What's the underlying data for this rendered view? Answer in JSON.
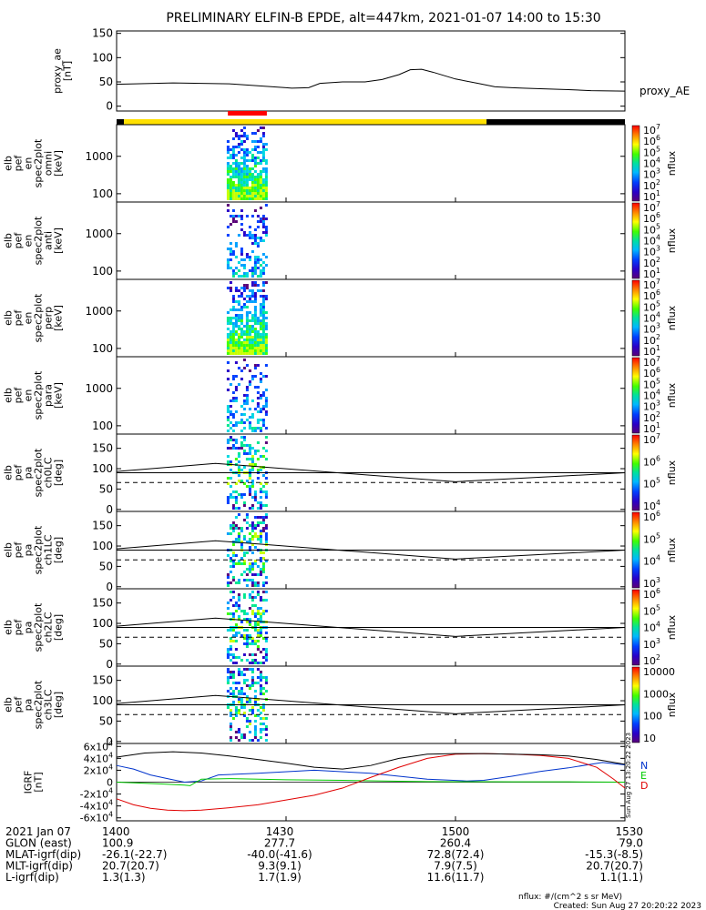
{
  "title": "PRELIMINARY ELFIN-B EPDE, alt=447km, 2021-01-07 14:00 to 15:30",
  "colorbar_unit": "nflux",
  "footer": {
    "units": "nflux: #/(cm^2 s sr MeV)",
    "created": "Created: Sun Aug 27 20:20:22 2023",
    "vertical_stamp": "Sun Aug 27 13:20:22 2023"
  },
  "time_axis": {
    "columns": [
      "1400",
      "1430",
      "1500",
      "1530"
    ],
    "rows": [
      {
        "label": "2021 Jan 07",
        "values": [
          "1400",
          "1430",
          "1500",
          "1530"
        ]
      },
      {
        "label": "GLON (east)",
        "values": [
          "100.9",
          "277.7",
          "260.4",
          "79.0"
        ]
      },
      {
        "label": "MLAT-igrf(dip)",
        "values": [
          "-26.1(-22.7)",
          "-40.0(-41.6)",
          "72.8(72.4)",
          "-15.3(-8.5)"
        ]
      },
      {
        "label": "MLT-igrf(dip)",
        "values": [
          "20.7(20.7)",
          "9.3(9.1)",
          "7.9(7.5)",
          "20.7(20.7)"
        ]
      },
      {
        "label": "L-igrf(dip)",
        "values": [
          "1.3(1.3)",
          "1.7(1.9)",
          "11.6(11.7)",
          "1.1(1.1)"
        ]
      }
    ]
  },
  "chart_data": [
    {
      "type": "line",
      "panel": "proxy_ae",
      "ylabel": [
        "proxy_ae",
        "[nT]"
      ],
      "yticks": [
        "150",
        "100",
        "50",
        "0"
      ],
      "ylim": [
        -10,
        155
      ],
      "legend": "proxy_AE",
      "x_minutes": [
        0,
        10,
        20,
        30,
        31,
        34,
        36,
        40,
        44,
        47,
        50,
        52,
        54,
        56,
        60,
        64,
        67,
        70,
        72,
        75,
        80,
        84,
        90
      ],
      "values": [
        45,
        48,
        46,
        38,
        37,
        38,
        47,
        50,
        50,
        55,
        65,
        75,
        76,
        70,
        56,
        47,
        40,
        38,
        37,
        36,
        34,
        32,
        31
      ]
    },
    {
      "type": "status_bar",
      "segments": [
        {
          "start_min": 0,
          "end_min": 1.3,
          "color": "#000000"
        },
        {
          "start_min": 1.3,
          "end_min": 65.5,
          "color": "#ffe000"
        },
        {
          "start_min": 65.5,
          "end_min": 90,
          "color": "#000000"
        }
      ],
      "science_zone": {
        "start_min": 19.7,
        "end_min": 26.6,
        "color": "#ff0000"
      }
    },
    {
      "type": "heatmap",
      "panel": "omni",
      "ylabel": [
        "elb",
        "pef",
        "en",
        "spec2plot",
        "omni",
        "[keV]"
      ],
      "yticks": [
        "1000",
        "100"
      ],
      "scale": "log",
      "ylim": [
        60,
        7000
      ],
      "colorbar": {
        "label": "nflux",
        "ticks": [
          "10^7",
          "10^6",
          "10^5",
          "10^4",
          "10^3",
          "10^2",
          "10^1"
        ]
      },
      "x_range_min": [
        19.5,
        26.5
      ],
      "intensity": "high"
    },
    {
      "type": "heatmap",
      "panel": "anti",
      "ylabel": [
        "elb",
        "pef",
        "en",
        "spec2plot",
        "anti",
        "[keV]"
      ],
      "yticks": [
        "1000",
        "100"
      ],
      "scale": "log",
      "ylim": [
        60,
        7000
      ],
      "colorbar": {
        "label": "nflux",
        "ticks": [
          "10^7",
          "10^6",
          "10^5",
          "10^4",
          "10^3",
          "10^2",
          "10^1"
        ]
      },
      "x_range_min": [
        19.5,
        26.5
      ],
      "intensity": "low"
    },
    {
      "type": "heatmap",
      "panel": "perp",
      "ylabel": [
        "elb",
        "pef",
        "en",
        "spec2plot",
        "perp",
        "[keV]"
      ],
      "yticks": [
        "1000",
        "100"
      ],
      "scale": "log",
      "ylim": [
        60,
        7000
      ],
      "colorbar": {
        "label": "nflux",
        "ticks": [
          "10^7",
          "10^6",
          "10^5",
          "10^4",
          "10^3",
          "10^2",
          "10^1"
        ]
      },
      "x_range_min": [
        19.5,
        26.5
      ],
      "intensity": "high"
    },
    {
      "type": "heatmap",
      "panel": "para",
      "ylabel": [
        "elb",
        "pef",
        "en",
        "spec2plot",
        "para",
        "[keV]"
      ],
      "yticks": [
        "1000",
        "100"
      ],
      "scale": "log",
      "ylim": [
        60,
        7000
      ],
      "colorbar": {
        "label": "nflux",
        "ticks": [
          "10^7",
          "10^6",
          "10^5",
          "10^4",
          "10^3",
          "10^2",
          "10^1"
        ]
      },
      "x_range_min": [
        19.5,
        26.5
      ],
      "intensity": "low"
    },
    {
      "type": "heatmap",
      "panel": "ch0LC",
      "ylabel": [
        "elb",
        "pef",
        "pa",
        "spec2plot",
        "ch0LC",
        "[deg]"
      ],
      "yticks": [
        "150",
        "100",
        "50",
        "0"
      ],
      "ylim": [
        -5,
        185
      ],
      "colorbar": {
        "label": "nflux",
        "ticks": [
          "10^7",
          "10^6",
          "10^5",
          "10^4"
        ]
      },
      "x_range_min": [
        19.5,
        26.5
      ],
      "loss_cone_solid": {
        "x_min": [
          0,
          17.5,
          60,
          90
        ],
        "values": [
          93,
          113,
          68,
          90
        ]
      },
      "loss_cone_dashed": 66,
      "ninety_line": 90
    },
    {
      "type": "heatmap",
      "panel": "ch1LC",
      "ylabel": [
        "elb",
        "pef",
        "pa",
        "spec2plot",
        "ch1LC",
        "[deg]"
      ],
      "yticks": [
        "150",
        "100",
        "50",
        "0"
      ],
      "ylim": [
        -5,
        185
      ],
      "colorbar": {
        "label": "nflux",
        "ticks": [
          "10^6",
          "10^5",
          "10^4",
          "10^3"
        ]
      },
      "x_range_min": [
        19.5,
        26.5
      ],
      "loss_cone_solid": {
        "x_min": [
          0,
          17.5,
          60,
          90
        ],
        "values": [
          93,
          113,
          68,
          90
        ]
      },
      "loss_cone_dashed": 66,
      "ninety_line": 90
    },
    {
      "type": "heatmap",
      "panel": "ch2LC",
      "ylabel": [
        "elb",
        "pef",
        "pa",
        "spec2plot",
        "ch2LC",
        "[deg]"
      ],
      "yticks": [
        "150",
        "100",
        "50",
        "0"
      ],
      "ylim": [
        -5,
        185
      ],
      "colorbar": {
        "label": "nflux",
        "ticks": [
          "10^6",
          "10^5",
          "10^4",
          "10^3",
          "10^2"
        ]
      },
      "x_range_min": [
        19.5,
        26.5
      ],
      "loss_cone_solid": {
        "x_min": [
          0,
          17.5,
          60,
          90
        ],
        "values": [
          93,
          113,
          68,
          90
        ]
      },
      "loss_cone_dashed": 66,
      "ninety_line": 90
    },
    {
      "type": "heatmap",
      "panel": "ch3LC",
      "ylabel": [
        "elb",
        "pef",
        "pa",
        "spec2plot",
        "ch3LC",
        "[deg]"
      ],
      "yticks": [
        "150",
        "100",
        "50",
        "0"
      ],
      "ylim": [
        -5,
        185
      ],
      "colorbar": {
        "label": "nflux",
        "ticks": [
          "10000",
          "1000",
          "100",
          "10"
        ]
      },
      "x_range_min": [
        19.5,
        26.5
      ],
      "loss_cone_solid": {
        "x_min": [
          0,
          17.5,
          60,
          90
        ],
        "values": [
          93,
          113,
          68,
          90
        ]
      },
      "loss_cone_dashed": 66,
      "ninety_line": 90
    },
    {
      "type": "line",
      "panel": "IGRF",
      "ylabel": [
        "IGRF",
        "[nT]"
      ],
      "yticks": [
        "6x10^4",
        "4x10^4",
        "2x10^4",
        "0",
        "-2x10^4",
        "-4x10^4",
        "-6x10^4"
      ],
      "ylim": [
        -65000,
        65000
      ],
      "series": [
        {
          "name": "N",
          "color": "#0033cc",
          "x_min": [
            0,
            3,
            6,
            9,
            12,
            15,
            18,
            25,
            35,
            45,
            55,
            62,
            65,
            70,
            75,
            80,
            86,
            90
          ],
          "values": [
            28000,
            22000,
            12000,
            6000,
            0,
            2000,
            12000,
            15000,
            20000,
            15000,
            5000,
            2000,
            3000,
            10000,
            18000,
            24000,
            33000,
            29000
          ]
        },
        {
          "name": "E",
          "color": "#00cc00",
          "x_min": [
            0,
            5,
            8,
            10,
            12,
            13,
            15,
            20,
            30,
            40,
            50,
            55,
            60,
            65,
            70,
            80,
            90
          ],
          "values": [
            0,
            -2000,
            -3000,
            -4000,
            -5000,
            -6000,
            5000,
            6000,
            4000,
            3000,
            1500,
            1000,
            800,
            700,
            600,
            500,
            0
          ]
        },
        {
          "name": "D",
          "color": "#e00000",
          "x_min": [
            0,
            3,
            6,
            9,
            12,
            15,
            20,
            25,
            30,
            35,
            40,
            45,
            50,
            55,
            60,
            65,
            70,
            75,
            80,
            85,
            88,
            90
          ],
          "values": [
            -28000,
            -38000,
            -44000,
            -47000,
            -48000,
            -47000,
            -43000,
            -38000,
            -30000,
            -22000,
            -10000,
            8000,
            25000,
            40000,
            47000,
            48000,
            47000,
            45000,
            40000,
            25000,
            5000,
            -10000
          ]
        },
        {
          "name": "",
          "color": "#000000",
          "x_min": [
            0,
            5,
            10,
            15,
            20,
            25,
            30,
            35,
            40,
            45,
            50,
            55,
            60,
            65,
            70,
            75,
            80,
            85,
            90
          ],
          "values": [
            42000,
            49000,
            51000,
            49000,
            44000,
            38000,
            32000,
            25000,
            22000,
            28000,
            40000,
            47000,
            48000,
            48000,
            47000,
            46000,
            44000,
            38000,
            30000
          ]
        }
      ]
    }
  ]
}
